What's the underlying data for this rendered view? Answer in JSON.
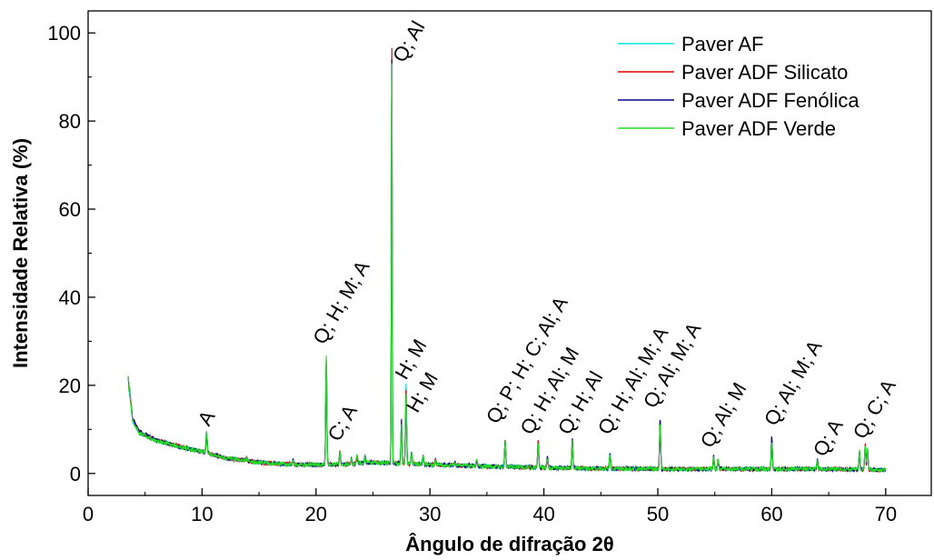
{
  "chart_data": {
    "type": "line",
    "title": "",
    "xlabel": "Ângulo de difração 2θ",
    "ylabel": "Intensidade Relativa (%)",
    "xlim": [
      0,
      74
    ],
    "ylim": [
      -5,
      105
    ],
    "xticks": [
      0,
      10,
      20,
      30,
      40,
      50,
      60,
      70
    ],
    "yticks": [
      0,
      20,
      40,
      60,
      80,
      100
    ],
    "grid": false,
    "legend_position": "top-right",
    "series": [
      {
        "name": "Paver AF",
        "color": "#00e5e5",
        "baseline": [
          [
            3.5,
            21.5
          ],
          [
            3.9,
            12
          ],
          [
            4.5,
            9
          ],
          [
            6,
            7.5
          ],
          [
            8,
            6
          ],
          [
            10,
            5
          ],
          [
            12,
            3.5
          ],
          [
            15,
            2.5
          ],
          [
            18,
            2
          ],
          [
            22,
            2
          ],
          [
            25,
            2.5
          ],
          [
            30,
            2
          ],
          [
            35,
            1.6
          ],
          [
            40,
            1.3
          ],
          [
            45,
            1.1
          ],
          [
            50,
            1
          ],
          [
            55,
            1
          ],
          [
            60,
            1
          ],
          [
            65,
            1
          ],
          [
            70,
            0.8
          ]
        ],
        "peaks": [
          [
            10.4,
            9.5
          ],
          [
            13.9,
            3.5
          ],
          [
            18,
            3
          ],
          [
            20.9,
            25.5
          ],
          [
            22.1,
            5
          ],
          [
            23.1,
            3.5
          ],
          [
            23.6,
            4
          ],
          [
            24.3,
            4
          ],
          [
            26.65,
            98
          ],
          [
            27.5,
            12
          ],
          [
            27.9,
            21
          ],
          [
            28.4,
            5
          ],
          [
            29.4,
            4
          ],
          [
            30.5,
            3
          ],
          [
            32.2,
            2.5
          ],
          [
            34.1,
            3
          ],
          [
            36.6,
            7.5
          ],
          [
            39.5,
            7
          ],
          [
            40.3,
            3.5
          ],
          [
            42.5,
            7.5
          ],
          [
            45.8,
            4.5
          ],
          [
            50.2,
            12
          ],
          [
            54.9,
            4
          ],
          [
            55.3,
            3
          ],
          [
            60.0,
            8
          ],
          [
            64.0,
            3
          ],
          [
            67.7,
            5
          ],
          [
            68.2,
            6
          ],
          [
            68.4,
            5.5
          ]
        ]
      },
      {
        "name": "Paver ADF Silicato",
        "color": "#e00000",
        "baseline": [
          [
            3.5,
            22.5
          ],
          [
            3.9,
            12.5
          ],
          [
            4.5,
            9.5
          ],
          [
            6,
            7.5
          ],
          [
            8,
            6.2
          ],
          [
            10,
            5
          ],
          [
            12,
            3.5
          ],
          [
            15,
            2.5
          ],
          [
            18,
            2
          ],
          [
            22,
            2
          ],
          [
            25,
            2.5
          ],
          [
            30,
            2
          ],
          [
            35,
            1.6
          ],
          [
            40,
            1.3
          ],
          [
            45,
            1.1
          ],
          [
            50,
            1
          ],
          [
            55,
            1
          ],
          [
            60,
            1
          ],
          [
            65,
            1
          ],
          [
            70,
            0.8
          ]
        ],
        "peaks": [
          [
            10.4,
            9
          ],
          [
            13.9,
            3.5
          ],
          [
            18,
            3
          ],
          [
            20.9,
            26
          ],
          [
            22.1,
            5
          ],
          [
            23.1,
            3.5
          ],
          [
            23.6,
            4
          ],
          [
            24.3,
            4
          ],
          [
            26.65,
            100
          ],
          [
            27.5,
            11
          ],
          [
            27.9,
            19
          ],
          [
            28.4,
            5
          ],
          [
            29.4,
            4
          ],
          [
            30.5,
            3
          ],
          [
            32.2,
            2.5
          ],
          [
            34.1,
            3
          ],
          [
            36.6,
            7.5
          ],
          [
            39.5,
            7.5
          ],
          [
            40.3,
            3.5
          ],
          [
            42.5,
            8
          ],
          [
            45.8,
            4.5
          ],
          [
            50.2,
            12
          ],
          [
            54.9,
            4
          ],
          [
            55.3,
            3
          ],
          [
            60.0,
            8
          ],
          [
            64.0,
            3
          ],
          [
            67.7,
            5
          ],
          [
            68.2,
            6.5
          ],
          [
            68.4,
            5.5
          ]
        ]
      },
      {
        "name": "Paver ADF Fenólica",
        "color": "#00008b",
        "baseline": [
          [
            3.5,
            22
          ],
          [
            3.9,
            12.5
          ],
          [
            4.5,
            9.5
          ],
          [
            6,
            7.5
          ],
          [
            8,
            6
          ],
          [
            10,
            5
          ],
          [
            12,
            3.5
          ],
          [
            15,
            2.5
          ],
          [
            18,
            2
          ],
          [
            22,
            2
          ],
          [
            25,
            2.5
          ],
          [
            30,
            2
          ],
          [
            35,
            1.6
          ],
          [
            40,
            1.3
          ],
          [
            45,
            1.1
          ],
          [
            50,
            1
          ],
          [
            55,
            1
          ],
          [
            60,
            1
          ],
          [
            65,
            1
          ],
          [
            70,
            0.8
          ]
        ],
        "peaks": [
          [
            10.4,
            9.5
          ],
          [
            13.9,
            3.5
          ],
          [
            18,
            3
          ],
          [
            20.9,
            26
          ],
          [
            22.1,
            5
          ],
          [
            23.1,
            3.5
          ],
          [
            23.6,
            4
          ],
          [
            24.3,
            4
          ],
          [
            26.65,
            98
          ],
          [
            27.5,
            12
          ],
          [
            27.9,
            17
          ],
          [
            28.4,
            5
          ],
          [
            29.4,
            4
          ],
          [
            30.5,
            3
          ],
          [
            32.2,
            2.5
          ],
          [
            34.1,
            3
          ],
          [
            36.6,
            7.5
          ],
          [
            39.5,
            7
          ],
          [
            40.3,
            4
          ],
          [
            42.5,
            8
          ],
          [
            45.8,
            4.5
          ],
          [
            50.2,
            12.5
          ],
          [
            54.9,
            4
          ],
          [
            55.3,
            3
          ],
          [
            60.0,
            8.5
          ],
          [
            64.0,
            3
          ],
          [
            67.7,
            5
          ],
          [
            68.2,
            6
          ],
          [
            68.4,
            5.5
          ]
        ]
      },
      {
        "name": "Paver ADF Verde",
        "color": "#22dd22",
        "baseline": [
          [
            3.5,
            22.5
          ],
          [
            3.9,
            12
          ],
          [
            4.5,
            9.2
          ],
          [
            6,
            7.3
          ],
          [
            8,
            6
          ],
          [
            10,
            5
          ],
          [
            12,
            3.5
          ],
          [
            15,
            2.5
          ],
          [
            18,
            2
          ],
          [
            22,
            2
          ],
          [
            25,
            2.5
          ],
          [
            30,
            2
          ],
          [
            35,
            1.6
          ],
          [
            40,
            1.3
          ],
          [
            45,
            1.1
          ],
          [
            50,
            1
          ],
          [
            55,
            1
          ],
          [
            60,
            1
          ],
          [
            65,
            1
          ],
          [
            70,
            0.8
          ]
        ],
        "peaks": [
          [
            10.4,
            9.5
          ],
          [
            13.9,
            3.5
          ],
          [
            18,
            3
          ],
          [
            20.9,
            27
          ],
          [
            22.1,
            5
          ],
          [
            23.1,
            3.5
          ],
          [
            23.6,
            4
          ],
          [
            24.3,
            4
          ],
          [
            26.65,
            97
          ],
          [
            27.5,
            11
          ],
          [
            27.9,
            18
          ],
          [
            28.4,
            5
          ],
          [
            29.4,
            4
          ],
          [
            30.5,
            3
          ],
          [
            32.2,
            2.5
          ],
          [
            34.1,
            3
          ],
          [
            36.6,
            7.5
          ],
          [
            39.5,
            6.5
          ],
          [
            40.3,
            3.5
          ],
          [
            42.5,
            7.5
          ],
          [
            45.8,
            4.5
          ],
          [
            50.2,
            11.5
          ],
          [
            54.9,
            3.5
          ],
          [
            55.3,
            3
          ],
          [
            60.0,
            7.5
          ],
          [
            64.0,
            3
          ],
          [
            67.7,
            5
          ],
          [
            68.2,
            6
          ],
          [
            68.4,
            5.5
          ]
        ]
      }
    ],
    "annotations": [
      {
        "text": "A",
        "x": 10.6,
        "y": 10.5
      },
      {
        "text": "Q; H; M; A",
        "x": 20.7,
        "y": 29
      },
      {
        "text": "C; A",
        "x": 22.0,
        "y": 7
      },
      {
        "text": "Q; Al",
        "x": 27.7,
        "y": 93
      },
      {
        "text": "H; M",
        "x": 27.9,
        "y": 21
      },
      {
        "text": "H; M",
        "x": 28.9,
        "y": 13.5
      },
      {
        "text": "Q; P; H; C; Al; A",
        "x": 35.9,
        "y": 11
      },
      {
        "text": "Q; H; Al; M",
        "x": 38.9,
        "y": 8.5
      },
      {
        "text": "Q; H; Al",
        "x": 42.2,
        "y": 8.5
      },
      {
        "text": "Q; H; Al; M; A",
        "x": 45.7,
        "y": 8.5
      },
      {
        "text": "Q; Al; M; A",
        "x": 49.7,
        "y": 14.5
      },
      {
        "text": "Q; Al; M",
        "x": 54.7,
        "y": 5.5
      },
      {
        "text": "Q; Al; M; A",
        "x": 60.3,
        "y": 10.5
      },
      {
        "text": "Q; A",
        "x": 64.6,
        "y": 3.5
      },
      {
        "text": "Q; C; A",
        "x": 68.1,
        "y": 7.5
      }
    ]
  }
}
